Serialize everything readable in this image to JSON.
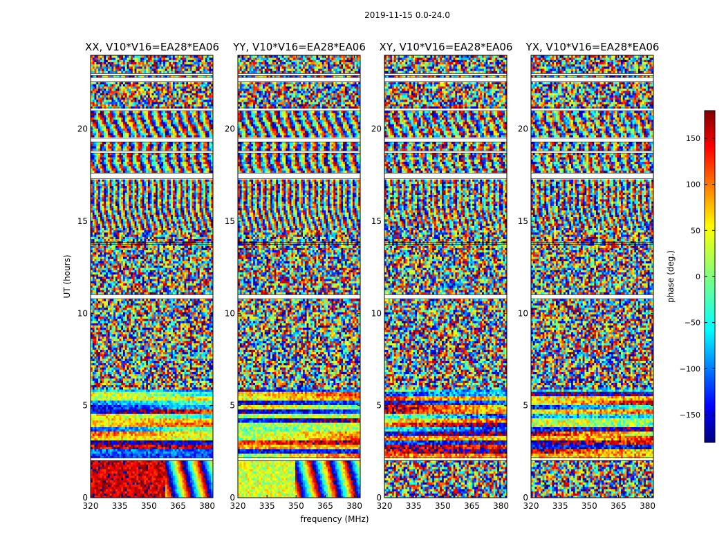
{
  "chart_data": [
    {
      "type": "heatmap",
      "title": "XX, V10*V16=EA28*EA06",
      "polarization": "XX",
      "xlabel": "",
      "ylabel": "UT (hours)",
      "xlim": [
        320,
        383
      ],
      "ylim": [
        0,
        24
      ],
      "xticks": [
        "320",
        "335",
        "350",
        "365",
        "380"
      ],
      "yticks": [
        "0",
        "5",
        "10",
        "15",
        "20"
      ],
      "rows": 200,
      "cols": 64,
      "flagged_hours": [
        [
          2.0,
          2.2
        ],
        [
          10.8,
          11.0
        ],
        [
          13.75,
          13.85
        ],
        [
          17.3,
          17.6
        ],
        [
          18.7,
          18.8
        ],
        [
          19.3,
          19.5
        ],
        [
          21.0,
          21.15
        ],
        [
          22.6,
          22.8
        ],
        [
          22.9,
          23.0
        ]
      ],
      "regimes": [
        {
          "from": 0.0,
          "to": 2.0,
          "pattern": "uniform",
          "phase_deg": 150,
          "noise_deg": 35,
          "until_mhz": 358
        },
        {
          "from": 2.2,
          "to": 5.9,
          "pattern": "horizontal_bands",
          "noise_deg": 90
        },
        {
          "from": 5.9,
          "to": 10.8,
          "pattern": "noise",
          "noise_deg": 180
        },
        {
          "from": 11.0,
          "to": 14.5,
          "pattern": "noise",
          "noise_deg": 170
        },
        {
          "from": 14.5,
          "to": 17.3,
          "pattern": "fringes",
          "rate": 9,
          "noise_deg": 60
        },
        {
          "from": 17.6,
          "to": 21.0,
          "pattern": "fringes",
          "rate": 6,
          "noise_deg": 70
        },
        {
          "from": 21.15,
          "to": 24.0,
          "pattern": "noise",
          "noise_deg": 180
        }
      ]
    },
    {
      "type": "heatmap",
      "title": "YY, V10*V16=EA28*EA06",
      "polarization": "YY",
      "xlabel": "frequency (MHz)",
      "ylabel": "",
      "xlim": [
        320,
        383
      ],
      "ylim": [
        0,
        24
      ],
      "xticks": [
        "320",
        "335",
        "350",
        "365",
        "380"
      ],
      "yticks": [
        "0",
        "5",
        "10",
        "15",
        "20"
      ],
      "rows": 200,
      "cols": 64,
      "flagged_hours": [
        [
          2.0,
          2.2
        ],
        [
          10.8,
          11.0
        ],
        [
          13.75,
          13.85
        ],
        [
          17.3,
          17.6
        ],
        [
          18.7,
          18.8
        ],
        [
          19.3,
          19.5
        ],
        [
          21.0,
          21.15
        ],
        [
          22.6,
          22.8
        ],
        [
          22.9,
          23.0
        ]
      ],
      "regimes": [
        {
          "from": 0.0,
          "to": 2.0,
          "pattern": "uniform",
          "phase_deg": 30,
          "noise_deg": 40,
          "until_mhz": 350
        },
        {
          "from": 2.2,
          "to": 5.9,
          "pattern": "horizontal_bands",
          "noise_deg": 90
        },
        {
          "from": 5.9,
          "to": 10.8,
          "pattern": "noise",
          "noise_deg": 180
        },
        {
          "from": 11.0,
          "to": 14.5,
          "pattern": "noise",
          "noise_deg": 170
        },
        {
          "from": 14.5,
          "to": 17.3,
          "pattern": "fringes",
          "rate": 9,
          "noise_deg": 60
        },
        {
          "from": 17.6,
          "to": 21.0,
          "pattern": "fringes",
          "rate": 6,
          "noise_deg": 70
        },
        {
          "from": 21.15,
          "to": 24.0,
          "pattern": "noise",
          "noise_deg": 180
        }
      ]
    },
    {
      "type": "heatmap",
      "title": "XY, V10*V16=EA28*EA06",
      "polarization": "XY",
      "xlabel": "",
      "ylabel": "",
      "xlim": [
        320,
        383
      ],
      "ylim": [
        0,
        24
      ],
      "xticks": [
        "320",
        "335",
        "350",
        "365",
        "380"
      ],
      "yticks": [
        "0",
        "5",
        "10",
        "15",
        "20"
      ],
      "rows": 200,
      "cols": 64,
      "flagged_hours": [
        [
          2.0,
          2.2
        ],
        [
          10.8,
          11.0
        ],
        [
          13.75,
          13.85
        ],
        [
          17.3,
          17.6
        ],
        [
          18.7,
          18.8
        ],
        [
          19.3,
          19.5
        ],
        [
          21.0,
          21.15
        ],
        [
          22.6,
          22.8
        ],
        [
          22.9,
          23.0
        ]
      ],
      "regimes": [
        {
          "from": 0.0,
          "to": 2.0,
          "pattern": "noise",
          "noise_deg": 180
        },
        {
          "from": 2.2,
          "to": 5.9,
          "pattern": "horizontal_bands",
          "noise_deg": 110
        },
        {
          "from": 5.9,
          "to": 10.8,
          "pattern": "noise",
          "noise_deg": 180
        },
        {
          "from": 11.0,
          "to": 14.5,
          "pattern": "noise",
          "noise_deg": 180
        },
        {
          "from": 14.5,
          "to": 17.3,
          "pattern": "fringes",
          "rate": 9,
          "noise_deg": 90
        },
        {
          "from": 17.6,
          "to": 21.0,
          "pattern": "fringes",
          "rate": 6,
          "noise_deg": 100
        },
        {
          "from": 21.15,
          "to": 24.0,
          "pattern": "noise",
          "noise_deg": 180
        }
      ]
    },
    {
      "type": "heatmap",
      "title": "YX, V10*V16=EA28*EA06",
      "polarization": "YX",
      "xlabel": "",
      "ylabel": "",
      "xlim": [
        320,
        383
      ],
      "ylim": [
        0,
        24
      ],
      "xticks": [
        "320",
        "335",
        "350",
        "365",
        "380"
      ],
      "yticks": [
        "0",
        "5",
        "10",
        "15",
        "20"
      ],
      "rows": 200,
      "cols": 64,
      "flagged_hours": [
        [
          2.0,
          2.2
        ],
        [
          10.8,
          11.0
        ],
        [
          13.75,
          13.85
        ],
        [
          17.3,
          17.6
        ],
        [
          18.7,
          18.8
        ],
        [
          19.3,
          19.5
        ],
        [
          21.0,
          21.15
        ],
        [
          22.6,
          22.8
        ],
        [
          22.9,
          23.0
        ]
      ],
      "regimes": [
        {
          "from": 0.0,
          "to": 2.0,
          "pattern": "noise",
          "noise_deg": 180
        },
        {
          "from": 2.2,
          "to": 5.9,
          "pattern": "horizontal_bands",
          "noise_deg": 110
        },
        {
          "from": 5.9,
          "to": 10.8,
          "pattern": "noise",
          "noise_deg": 180
        },
        {
          "from": 11.0,
          "to": 14.5,
          "pattern": "noise",
          "noise_deg": 180
        },
        {
          "from": 14.5,
          "to": 17.3,
          "pattern": "fringes",
          "rate": 9,
          "noise_deg": 90
        },
        {
          "from": 17.6,
          "to": 21.0,
          "pattern": "fringes",
          "rate": 6,
          "noise_deg": 100
        },
        {
          "from": 21.15,
          "to": 24.0,
          "pattern": "noise",
          "noise_deg": 180
        }
      ]
    }
  ],
  "figure": {
    "suptitle": "2019-11-15 0.0-24.0",
    "xlabel": "frequency (MHz)",
    "ylabel": "UT (hours)"
  },
  "colorbar": {
    "label": "phase (deg.)",
    "min": -180,
    "max": 180,
    "ticks": [
      "150",
      "100",
      "50",
      "0",
      "−50",
      "−100",
      "−150"
    ],
    "tick_values": [
      150,
      100,
      50,
      0,
      -50,
      -100,
      -150
    ],
    "colormap": "jet"
  }
}
